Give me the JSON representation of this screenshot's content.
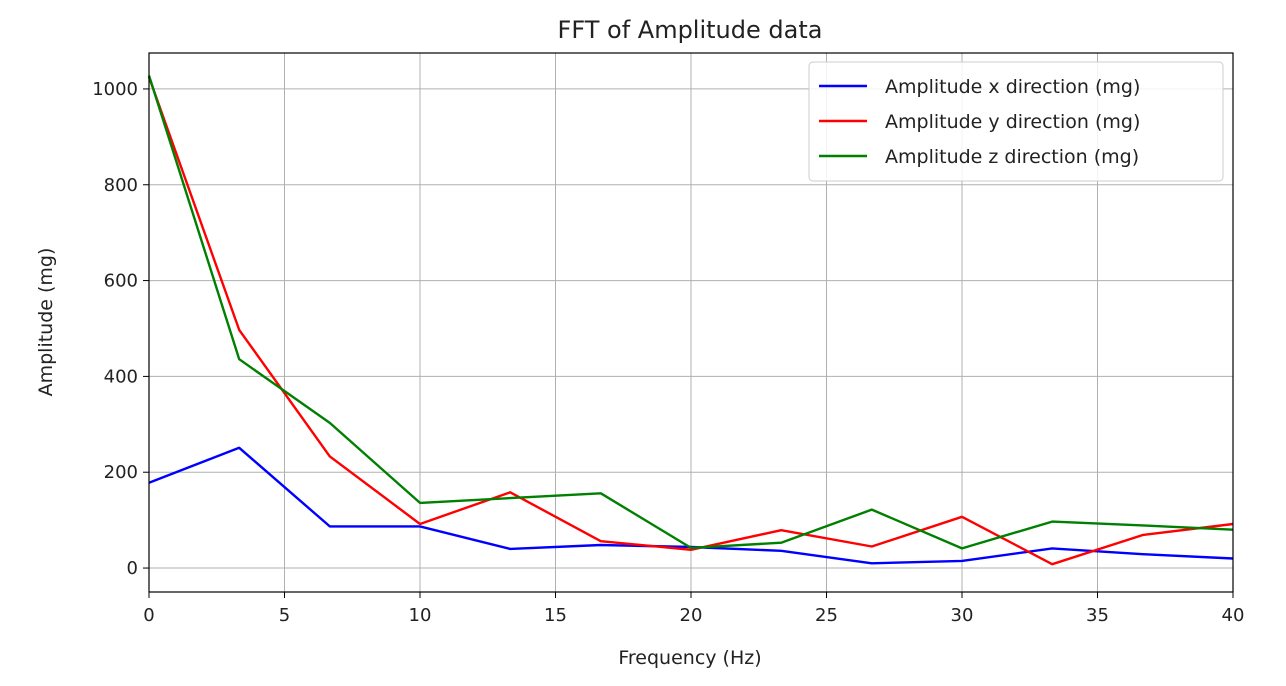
{
  "chart_data": {
    "type": "line",
    "title": "FFT of Amplitude data",
    "xlabel": "Frequency (Hz)",
    "ylabel": "Amplitude (mg)",
    "xlim": [
      0,
      40
    ],
    "ylim": [
      -50,
      1075
    ],
    "xticks": [
      0,
      5,
      10,
      15,
      20,
      25,
      30,
      35,
      40
    ],
    "yticks": [
      0,
      200,
      400,
      600,
      800,
      1000
    ],
    "grid": true,
    "legend_position": "top-right",
    "x": [
      0,
      3.33,
      6.67,
      10,
      13.33,
      16.67,
      20,
      23.33,
      26.67,
      30,
      33.33,
      36.67,
      40
    ],
    "series": [
      {
        "name": "Amplitude x direction (mg)",
        "color": "#0000ff",
        "values": [
          178,
          251,
          87,
          87,
          40,
          48,
          44,
          36,
          10,
          15,
          41,
          29,
          20
        ]
      },
      {
        "name": "Amplitude y direction (mg)",
        "color": "#ff0000",
        "values": [
          1025,
          497,
          233,
          92,
          158,
          56,
          38,
          79,
          45,
          107,
          8,
          69,
          92
        ]
      },
      {
        "name": "Amplitude z direction (mg)",
        "color": "#008000",
        "values": [
          1028,
          436,
          303,
          136,
          146,
          156,
          42,
          53,
          122,
          41,
          97,
          89,
          80
        ]
      }
    ]
  }
}
